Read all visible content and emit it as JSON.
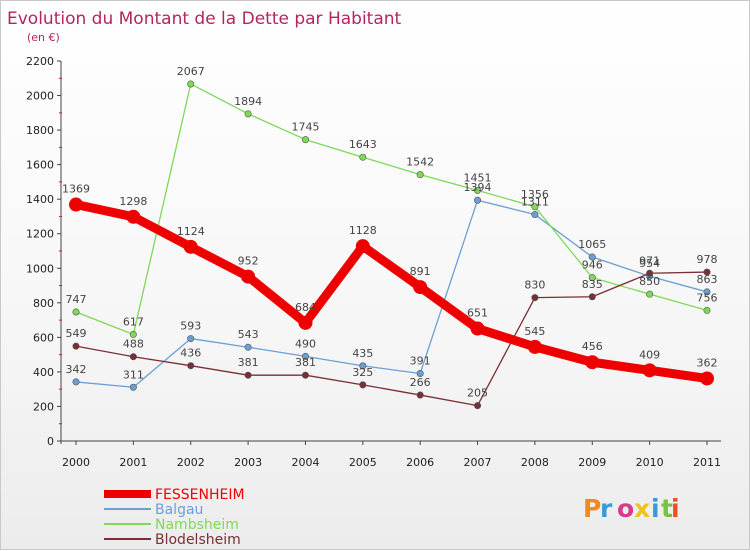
{
  "chart_data": {
    "type": "line",
    "title": "Evolution du Montant de la Dette par Habitant",
    "unit_label": "(en €)",
    "x": [
      "2000",
      "2001",
      "2002",
      "2003",
      "2004",
      "2005",
      "2006",
      "2007",
      "2008",
      "2009",
      "2010",
      "2011"
    ],
    "ylim": [
      0,
      2200
    ],
    "yticks": [
      0,
      200,
      400,
      600,
      800,
      1000,
      1200,
      1400,
      1600,
      1800,
      2000,
      2200
    ],
    "grid": false,
    "legend_position": "bottom-left",
    "series": [
      {
        "name": "FESSENHEIM",
        "color": "#ee0000",
        "values": [
          1369,
          1298,
          1124,
          952,
          684,
          1128,
          891,
          651,
          545,
          456,
          409,
          362
        ],
        "labels": [
          "1369",
          "1298",
          "1124",
          "952",
          "684",
          "1128",
          "891",
          "651",
          "545",
          "456",
          "409",
          "362"
        ]
      },
      {
        "name": "Balgau",
        "color": "#6a9fd4",
        "values": [
          342,
          311,
          593,
          543,
          490,
          435,
          391,
          1394,
          1311,
          1065,
          954,
          863
        ],
        "labels": [
          "342",
          "311",
          "593",
          "543",
          "490",
          "435",
          "391",
          "1394",
          "1311",
          "1065",
          "954",
          "863"
        ]
      },
      {
        "name": "Nambsheim",
        "color": "#7ed957",
        "values": [
          747,
          617,
          2067,
          1894,
          1745,
          1643,
          1542,
          1451,
          1356,
          946,
          850,
          756
        ],
        "labels": [
          "747",
          "617",
          "2067",
          "1894",
          "1745",
          "1643",
          "1542",
          "1451",
          "1356",
          "946",
          "850",
          "756"
        ]
      },
      {
        "name": "Blodelsheim",
        "color": "#7a2e35",
        "values": [
          549,
          488,
          436,
          381,
          381,
          325,
          266,
          205,
          830,
          835,
          971,
          978
        ],
        "labels": [
          "549",
          "488",
          "436",
          "381",
          "381",
          "325",
          "266",
          "205",
          "830",
          "835",
          "971",
          "978"
        ]
      }
    ]
  },
  "brand": {
    "text": "Proxiti",
    "colors": [
      "#f08a1c",
      "#3a9ad9",
      "#d83a8c",
      "#f2c21b",
      "#3a9ad9",
      "#7cc242",
      "#e8502a"
    ]
  }
}
